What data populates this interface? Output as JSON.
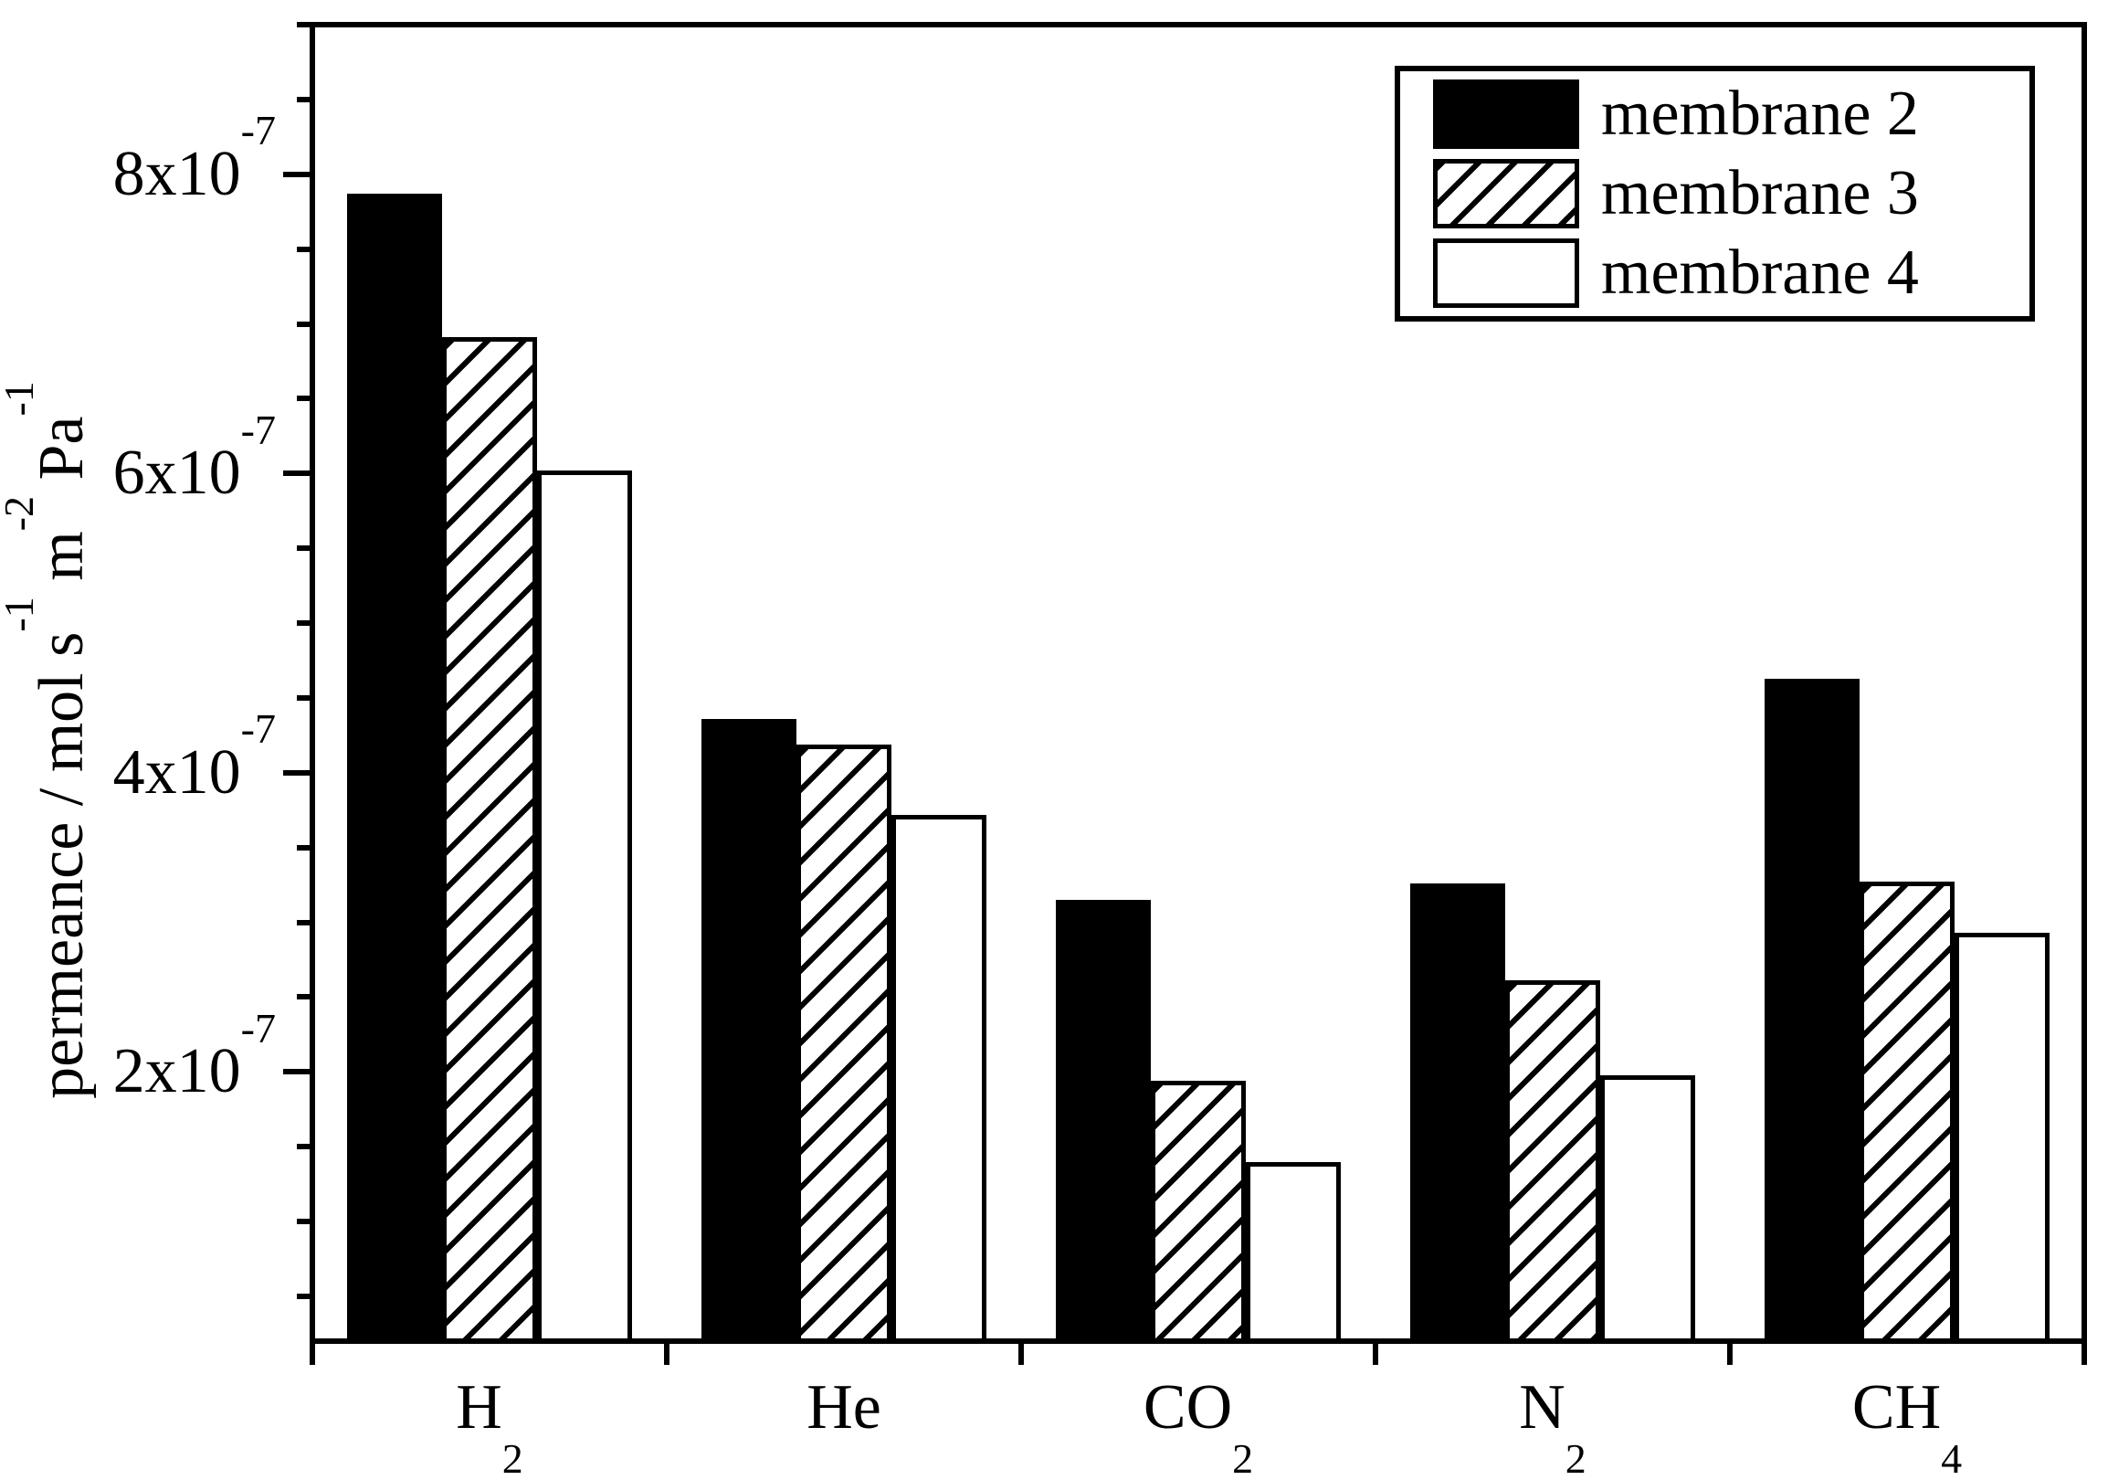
{
  "figure": {
    "background_color": "#ffffff",
    "foreground_color": "#000000"
  },
  "chart_data": {
    "type": "bar",
    "title": "",
    "xlabel": "",
    "ylabel_plain": "permeance / mol s^-1 m^-2 Pa^-1",
    "ylabel_segments": [
      {
        "t": "permeance / mol s"
      },
      {
        "sup": "-1"
      },
      {
        "t": " m"
      },
      {
        "sup": "-2"
      },
      {
        "t": " Pa"
      },
      {
        "sup": "-1"
      }
    ],
    "categories": [
      {
        "base": "H",
        "sub": "2"
      },
      {
        "base": "He",
        "sub": ""
      },
      {
        "base": "CO",
        "sub": "2"
      },
      {
        "base": "N",
        "sub": "2"
      },
      {
        "base": "CH",
        "sub": "4"
      }
    ],
    "series": [
      {
        "name": "membrane 2",
        "pattern": "solid-black",
        "values": [
          7.87,
          4.36,
          3.15,
          3.26,
          4.63
        ]
      },
      {
        "name": "membrane 3",
        "pattern": "diagonal-hatch",
        "values": [
          6.91,
          4.19,
          1.94,
          2.61,
          3.27
        ]
      },
      {
        "name": "membrane 4",
        "pattern": "open-white",
        "values": [
          6.02,
          3.72,
          1.4,
          1.98,
          2.93
        ]
      }
    ],
    "value_unit": "x10^-7 mol s^-1 m^-2 Pa^-1",
    "ylim_e7": [
      0.2,
      9.0
    ],
    "ytick_major_e7": [
      2,
      4,
      6,
      8
    ],
    "ytick_major_labels": [
      {
        "base": "2x10",
        "sup": "-7"
      },
      {
        "base": "4x10",
        "sup": "-7"
      },
      {
        "base": "6x10",
        "sup": "-7"
      },
      {
        "base": "8x10",
        "sup": "-7"
      }
    ],
    "ytick_minor_step_e7": 0.5,
    "grid": false,
    "legend_position": "top-right"
  }
}
